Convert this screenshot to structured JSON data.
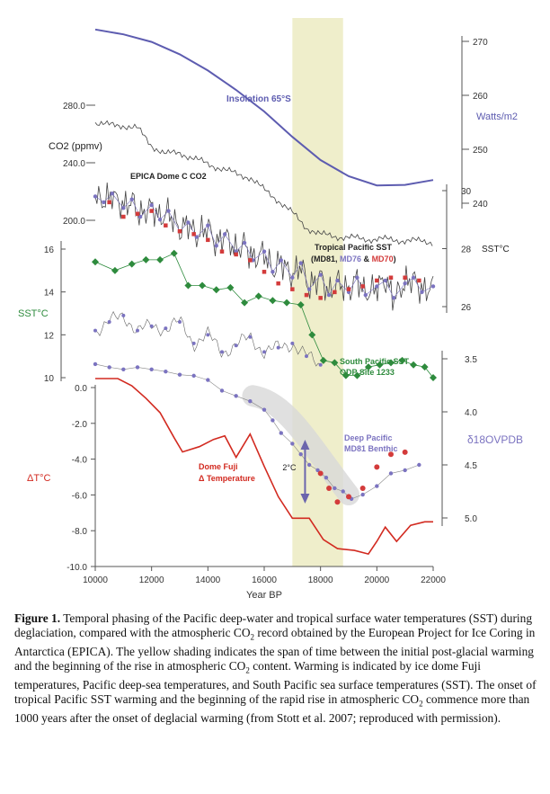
{
  "chart_data": {
    "type": "line",
    "x_axis": {
      "label": "Year BP",
      "range": [
        10000,
        22000
      ],
      "ticks": [
        10000,
        12000,
        14000,
        16000,
        18000,
        20000,
        22000
      ],
      "tick_labels": [
        "10000",
        "12000",
        "14000",
        "16000",
        "18000",
        "20000",
        "22000"
      ]
    },
    "shaded_band": {
      "x_range": [
        17000,
        18800
      ],
      "color": "#efeecb"
    },
    "colors": {
      "insolation": "#5d5cb0",
      "co2": "#444444",
      "tropical": "#444444",
      "md81": "#7b73c0",
      "md76": "#d33b3b",
      "south_pacific": "#2e8b3d",
      "dome_fuji": "#d22a20",
      "benthic": "#7b73c0",
      "arrow": "#6b65ad",
      "band": "#efeecb"
    },
    "left_axes": {
      "co2": {
        "label": "CO2 (ppmv)",
        "ticks": [
          200,
          240,
          280
        ],
        "tick_labels": [
          "200.0",
          "240.0",
          "280.0"
        ]
      },
      "sst": {
        "label": "SST°C",
        "ticks": [
          10,
          12,
          14,
          16
        ],
        "tick_labels": [
          "10",
          "12",
          "14",
          "16"
        ]
      },
      "dt": {
        "label": "ΔT°C",
        "ticks": [
          -10,
          -8,
          -6,
          -4,
          -2,
          0
        ],
        "tick_labels": [
          "-10.0",
          "-8.0",
          "-6.0",
          "-4.0",
          "-2.0",
          "0.0"
        ]
      }
    },
    "right_axes": {
      "insolation": {
        "label": "Watts/m2",
        "ticks": [
          240,
          250,
          260,
          270
        ],
        "tick_labels": [
          "240",
          "250",
          "260",
          "270"
        ]
      },
      "tropical_sst": {
        "label": "SST°C",
        "ticks": [
          26,
          28,
          30
        ],
        "tick_labels": [
          "26",
          "28",
          "30"
        ]
      },
      "d18o": {
        "label": "δ18OVPDB",
        "ticks": [
          3.5,
          4.0,
          4.5,
          5.0
        ],
        "tick_labels": [
          "3.5",
          "4.0",
          "4.5",
          "5.0"
        ]
      }
    },
    "annotations": {
      "insolation": "Insolation 65°S",
      "co2": "EPICA Dome C CO2",
      "tropical_title": "Tropical Pacific SST",
      "tropical_md81": "MD81",
      "tropical_md76": "MD76",
      "tropical_md70": "MD70",
      "south_title": "South Pacific SST",
      "south_site": "ODP Site 1233",
      "deep_title": "Deep Pacific",
      "deep_site": "MD81 Benthic",
      "fuji_title": "Dome Fuji",
      "fuji_sub": "Δ Temperature",
      "arrow": "2°C"
    },
    "series": [
      {
        "name": "Insolation 65°S",
        "axis": "insolation",
        "x": [
          10000,
          11000,
          12000,
          13000,
          14000,
          15000,
          16000,
          17000,
          18000,
          19000,
          20000,
          21000,
          22000
        ],
        "y": [
          272.2,
          271.3,
          269.9,
          267.6,
          264.6,
          261.0,
          257.0,
          252.3,
          248.0,
          245.0,
          243.3,
          243.4,
          244.3
        ]
      },
      {
        "name": "EPICA Dome C CO2",
        "axis": "co2",
        "x": [
          10000,
          10500,
          11000,
          11500,
          12000,
          12500,
          13000,
          13500,
          14000,
          14500,
          15000,
          15500,
          16000,
          16500,
          17000,
          17500,
          18000,
          18500,
          19000,
          19500,
          20000,
          21000,
          22000
        ],
        "y": [
          268,
          266,
          266,
          264,
          252,
          246,
          247,
          243,
          239,
          236,
          232,
          230,
          221,
          214,
          205,
          195,
          190,
          189,
          188,
          187,
          187,
          186,
          185
        ]
      },
      {
        "name": "MD81",
        "axis": "tropical_sst",
        "x": [
          10000,
          10300,
          10600,
          11000,
          11300,
          11600,
          12000,
          12300,
          12600,
          13000,
          13300,
          13600,
          14000,
          14300,
          14600,
          15000,
          15300,
          15600,
          16000,
          16300,
          16600,
          17000,
          17300,
          17600,
          18000,
          18300,
          18600,
          19000,
          19300,
          19600,
          20000,
          20300,
          20600,
          21000,
          21300,
          21600,
          22000
        ],
        "y": [
          29.8,
          29.6,
          29.9,
          29.4,
          29.7,
          29.1,
          29.5,
          29.0,
          29.3,
          28.6,
          28.9,
          28.4,
          28.8,
          28.1,
          28.5,
          27.9,
          28.2,
          27.6,
          27.9,
          27.2,
          27.6,
          27.0,
          27.5,
          26.6,
          27.1,
          26.4,
          26.9,
          26.5,
          27.0,
          26.4,
          26.7,
          26.9,
          26.3,
          26.8,
          27.0,
          26.5,
          26.7
        ]
      },
      {
        "name": "MD76",
        "axis": "tropical_sst",
        "x": [
          10500,
          11000,
          11500,
          12000,
          12500,
          13000,
          13500,
          14000,
          14500,
          15000,
          15500,
          16000,
          16500,
          17000,
          17500,
          18000,
          18500,
          19000,
          19500,
          20000,
          20500,
          21000,
          21500
        ],
        "y": [
          29.6,
          29.1,
          29.2,
          29.3,
          28.8,
          28.6,
          28.5,
          28.3,
          27.9,
          27.8,
          27.6,
          27.2,
          26.8,
          26.6,
          26.4,
          26.3,
          26.5,
          26.6,
          26.7,
          26.9,
          27.0,
          27.0,
          26.9
        ]
      },
      {
        "name": "South Pacific SST",
        "axis": "sst",
        "x": [
          10000,
          10700,
          11300,
          11800,
          12300,
          12800,
          13300,
          13800,
          14300,
          14800,
          15300,
          15800,
          16300,
          16800,
          17300,
          17700,
          18100,
          18500,
          18900,
          19300,
          19700,
          20100,
          20500,
          20900,
          21300,
          21700,
          22000
        ],
        "y": [
          15.4,
          15.0,
          15.3,
          15.5,
          15.5,
          15.8,
          14.3,
          14.3,
          14.1,
          14.2,
          13.5,
          13.8,
          13.6,
          13.5,
          13.4,
          12.0,
          10.8,
          10.7,
          10.1,
          10.1,
          10.5,
          10.6,
          10.7,
          10.8,
          10.6,
          10.5,
          10.0
        ]
      },
      {
        "name": "SST (lower record)",
        "axis": "sst",
        "x": [
          10000,
          10500,
          11000,
          11500,
          12000,
          12500,
          13000,
          13500,
          14000,
          14500,
          15000,
          15500,
          16000,
          16500,
          17000,
          17500,
          18000
        ],
        "y": [
          12.2,
          12.6,
          12.9,
          12.2,
          12.4,
          12.3,
          12.6,
          11.6,
          12.0,
          11.2,
          11.5,
          11.9,
          11.2,
          11.4,
          11.6,
          11.0,
          10.6
        ]
      },
      {
        "name": "Dome Fuji Δ Temperature",
        "axis": "dt",
        "x": [
          10000,
          10800,
          11300,
          11800,
          12300,
          12800,
          13100,
          13700,
          14200,
          14600,
          15000,
          15500,
          16000,
          16500,
          17000,
          17600,
          18100,
          18600,
          19200,
          19700,
          20000,
          20300,
          20700,
          21200,
          21700,
          22000
        ],
        "y": [
          0.5,
          0.5,
          0.1,
          -0.6,
          -1.4,
          -2.8,
          -3.6,
          -3.3,
          -2.9,
          -2.7,
          -3.9,
          -2.6,
          -4.4,
          -6.1,
          -7.3,
          -7.3,
          -8.5,
          -9.0,
          -9.1,
          -9.3,
          -8.6,
          -7.8,
          -8.6,
          -7.7,
          -7.5,
          -7.5
        ]
      },
      {
        "name": "Deep Pacific MD81 Benthic",
        "axis": "d18o",
        "x": [
          10000,
          10500,
          11000,
          11500,
          12000,
          12500,
          13000,
          13500,
          14000,
          14500,
          15000,
          15500,
          16000,
          16300,
          16600,
          17000,
          17300,
          17600,
          17900,
          18200,
          18500,
          18800,
          19100,
          19500,
          20000,
          20500,
          21000,
          21500
        ],
        "y": [
          3.55,
          3.58,
          3.6,
          3.58,
          3.6,
          3.62,
          3.65,
          3.66,
          3.7,
          3.8,
          3.85,
          3.9,
          3.98,
          4.08,
          4.2,
          4.3,
          4.4,
          4.5,
          4.55,
          4.62,
          4.72,
          4.75,
          4.82,
          4.78,
          4.7,
          4.58,
          4.55,
          4.5
        ]
      },
      {
        "name": "Deep Pacific (red)",
        "axis": "d18o",
        "x": [
          18000,
          18300,
          18600,
          19000,
          19500,
          20000,
          20500,
          21000
        ],
        "y": [
          4.58,
          4.72,
          4.85,
          4.8,
          4.72,
          4.52,
          4.4,
          4.38
        ]
      }
    ]
  },
  "caption": {
    "label": "Figure 1.",
    "part1": "Temporal phasing of the Pacific deep-water and tropical surface water temperatures (SST) during deglaciation, compared with the atmospheric CO",
    "sub1": "2",
    "part2": "record obtained by the European Project for Ice Coring in Antarctica (EPICA). The yellow shading indicates the span of time between the initial post-glacial warming and the beginning of the rise in atmospheric CO",
    "sub2": "2",
    "part3": "content. Warming is indicated by ice dome Fuji temperatures, Pacific deep-sea temperatures, and South Pacific sea surface temperatures (SST). The onset of tropical Pacific SST warming and the beginning of the rapid rise in atmospheric CO",
    "sub3": "2",
    "part4": "commence more than 1000 years after the onset of deglacial warming (from Stott et al. 2007; reproduced with permission)."
  }
}
